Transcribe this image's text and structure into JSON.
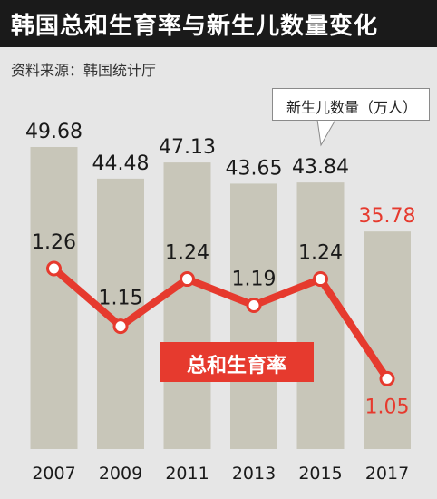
{
  "header": {
    "title": "韩国总和生育率与新生儿数量变化"
  },
  "source": "资料来源：韩国统计厅",
  "legend": {
    "births_label": "新生儿数量（万人）"
  },
  "callout": {
    "fertility_label": "总和生育率"
  },
  "colors": {
    "bar": "#c8c6b9",
    "line": "#e63a2e",
    "highlight_text": "#e63a2e",
    "text": "#1a1a1a",
    "header_bg": "#1a1a1a"
  },
  "chart_data": {
    "type": "bar",
    "title": "韩国总和生育率与新生儿数量变化",
    "categories": [
      "2007",
      "2009",
      "2011",
      "2013",
      "2015",
      "2017"
    ],
    "series": [
      {
        "name": "新生儿数量（万人）",
        "type": "bar",
        "values": [
          49.68,
          44.48,
          47.13,
          43.65,
          43.84,
          35.78
        ],
        "labels": [
          "49.68",
          "44.48",
          "47.13",
          "43.65",
          "43.84",
          "35.78"
        ]
      },
      {
        "name": "总和生育率",
        "type": "line",
        "values": [
          1.26,
          1.15,
          1.24,
          1.19,
          1.24,
          1.05
        ],
        "labels": [
          "1.26",
          "1.15",
          "1.24",
          "1.19",
          "1.24",
          "1.05"
        ]
      }
    ],
    "highlight_index": 5,
    "grid": false
  }
}
